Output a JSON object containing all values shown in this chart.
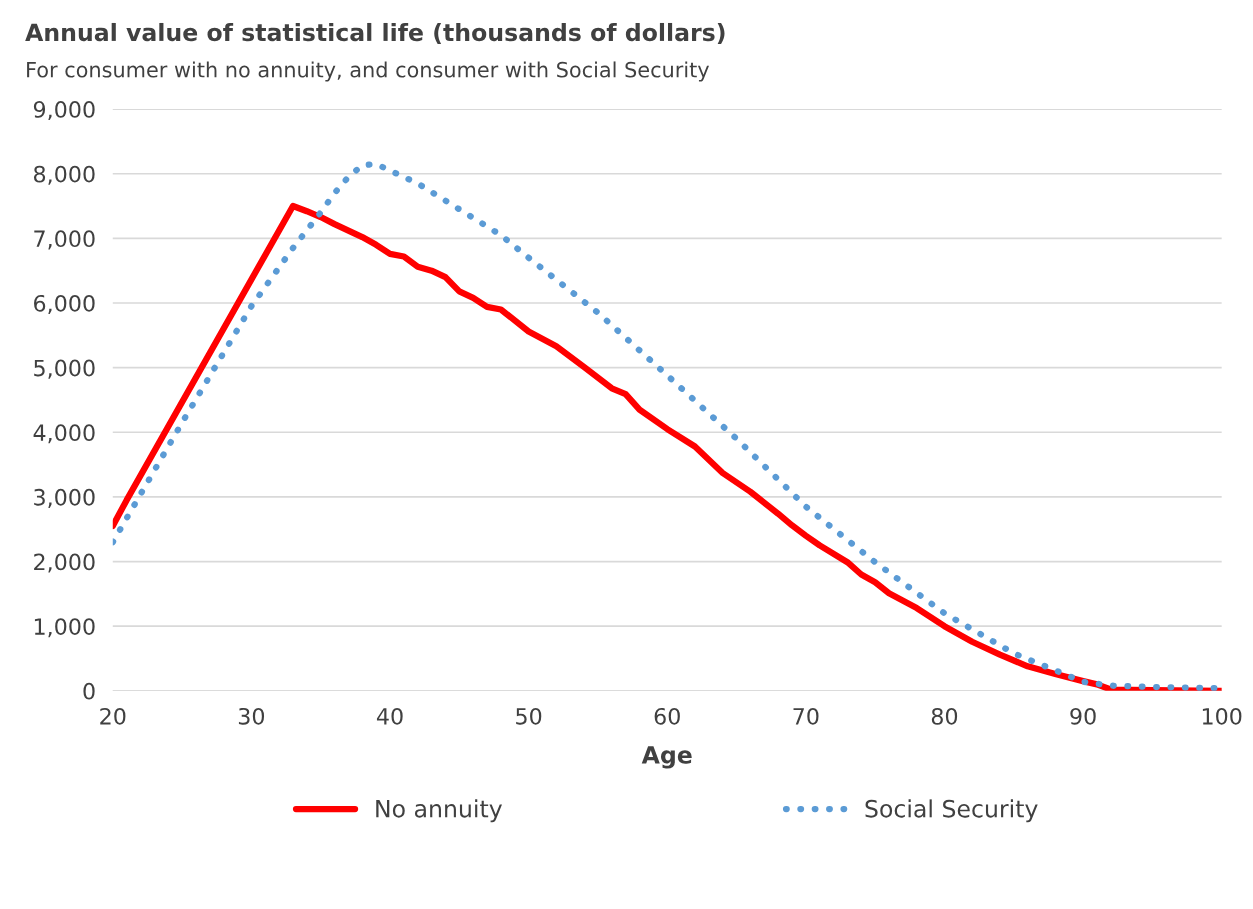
{
  "chart_data": {
    "type": "line",
    "title": "Annual value of statistical life (thousands of dollars)",
    "subtitle": "For consumer with no annuity, and consumer with Social Security",
    "xlabel": "Age",
    "xlim": [
      20,
      100
    ],
    "xticks": [
      20,
      30,
      40,
      50,
      60,
      70,
      80,
      90,
      100
    ],
    "ylim": [
      0,
      9000
    ],
    "yticks": [
      {
        "value": 0,
        "label": "0"
      },
      {
        "value": 1000,
        "label": "1,000"
      },
      {
        "value": 2000,
        "label": "2,000"
      },
      {
        "value": 3000,
        "label": "3,000"
      },
      {
        "value": 4000,
        "label": "4,000"
      },
      {
        "value": 5000,
        "label": "5,000"
      },
      {
        "value": 6000,
        "label": "6,000"
      },
      {
        "value": 7000,
        "label": "7,000"
      },
      {
        "value": 8000,
        "label": "8,000"
      },
      {
        "value": 9000,
        "label": "9,000"
      }
    ],
    "grid": "y",
    "legend": "bottom",
    "series": [
      {
        "name": "No annuity",
        "color": "#ff0000",
        "line_style": "solid",
        "x": [
          20,
          21,
          33,
          34,
          35,
          36,
          38,
          39,
          40,
          41,
          42,
          43,
          44,
          45,
          46,
          47,
          48,
          50,
          52,
          54,
          56,
          57,
          58,
          60,
          62,
          64,
          66,
          68,
          69,
          70,
          71,
          73,
          74,
          75,
          76,
          78,
          80,
          82,
          84,
          86,
          88,
          90,
          91,
          92,
          95,
          100
        ],
        "values": [
          2550,
          2950,
          7500,
          7420,
          7330,
          7220,
          7020,
          6900,
          6760,
          6720,
          6560,
          6500,
          6400,
          6180,
          6080,
          5940,
          5900,
          5560,
          5330,
          5010,
          4680,
          4590,
          4350,
          4050,
          3780,
          3370,
          3080,
          2740,
          2560,
          2400,
          2250,
          1990,
          1800,
          1680,
          1510,
          1280,
          1000,
          760,
          560,
          380,
          260,
          150,
          100,
          20,
          10,
          0
        ]
      },
      {
        "name": "Social Security",
        "color": "#5b9bd5",
        "line_style": "dotted",
        "x": [
          20,
          25,
          30,
          33,
          35,
          36,
          37,
          38,
          39,
          40,
          42,
          45,
          48,
          50,
          55,
          60,
          65,
          70,
          75,
          80,
          85,
          90,
          92,
          95,
          100
        ],
        "values": [
          2300,
          4150,
          5950,
          6850,
          7400,
          7700,
          7950,
          8130,
          8150,
          8050,
          7850,
          7450,
          7050,
          6700,
          5850,
          4880,
          3900,
          2850,
          1990,
          1200,
          580,
          140,
          80,
          60,
          40
        ]
      }
    ]
  }
}
